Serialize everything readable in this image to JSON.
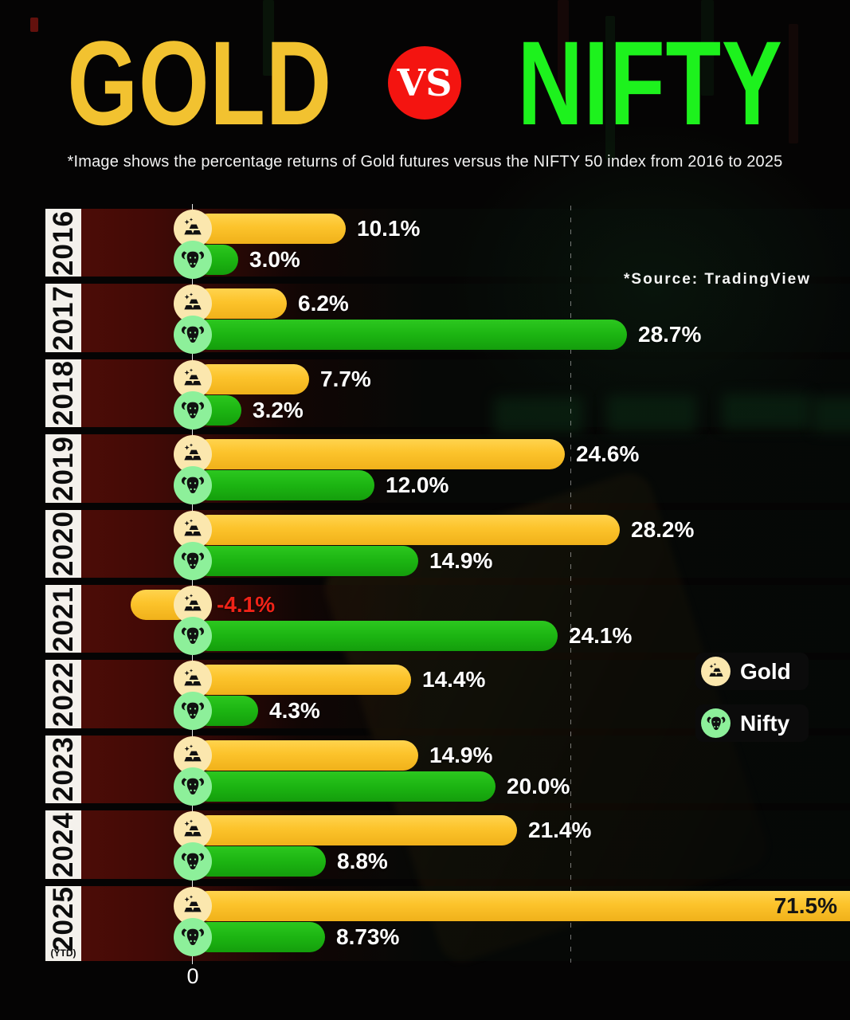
{
  "title": {
    "gold": "GOLD",
    "vs": "VS",
    "nifty": "NIFTY"
  },
  "subtitle": "*Image shows the percentage returns of Gold futures versus the NIFTY 50 index from 2016 to 2025",
  "source": "*Source: TradingView",
  "legend": {
    "items": [
      {
        "label": "Gold",
        "icon": "gold-bars-icon",
        "circle_color": "#fbe7ae"
      },
      {
        "label": "Nifty",
        "icon": "bull-icon",
        "circle_color": "#8df09a"
      }
    ]
  },
  "colors": {
    "title_gold": "#f2c230",
    "title_green": "#1df21d",
    "vs_red": "#f41410",
    "gold_bar": "#fcc32b",
    "nifty_bar": "#1cb512",
    "gold_icon_circle": "#fbe7ae",
    "nifty_icon_circle": "#8df09a",
    "negative_label": "#f02318",
    "inside_label": "#141414",
    "year_box": "#f4f1ec"
  },
  "chart_data": {
    "type": "bar",
    "orientation": "horizontal-grouped",
    "unit": "%",
    "title": "GOLD VS NIFTY",
    "categories": [
      "2016",
      "2017",
      "2018",
      "2019",
      "2020",
      "2021",
      "2022",
      "2023",
      "2024",
      "2025"
    ],
    "category_note": {
      "category": "2025",
      "note": "(YTD)"
    },
    "series": [
      {
        "name": "Gold",
        "icon": "gold-bars-icon",
        "values": [
          10.1,
          6.2,
          7.7,
          24.6,
          28.2,
          -4.1,
          14.4,
          14.9,
          21.4,
          71.5
        ],
        "labels": [
          "10.1%",
          "6.2%",
          "7.7%",
          "24.6%",
          "28.2%",
          "-4.1%",
          "14.4%",
          "14.9%",
          "21.4%",
          "71.5%"
        ]
      },
      {
        "name": "Nifty",
        "icon": "bull-icon",
        "values": [
          3.0,
          28.7,
          3.2,
          12.0,
          14.9,
          24.1,
          4.3,
          20.0,
          8.8,
          8.73
        ],
        "labels": [
          "3.0%",
          "28.7%",
          "3.2%",
          "12.0%",
          "14.9%",
          "24.1%",
          "4.3%",
          "20.0%",
          "8.8%",
          "8.73%"
        ]
      }
    ],
    "xaxis": {
      "zero_label": "0",
      "reference_line_at": 25,
      "gridlines": "dashed-reference-only"
    },
    "legend_position": "right-middle"
  }
}
